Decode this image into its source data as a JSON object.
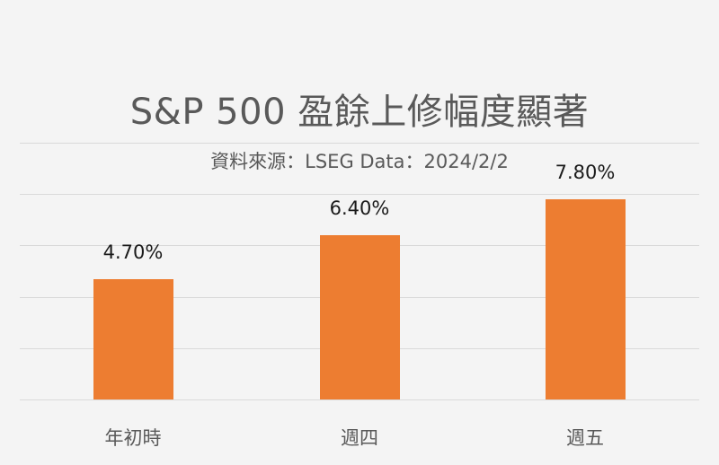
{
  "chart_data": {
    "type": "bar",
    "title": "S&P 500 盈餘上修幅度顯著",
    "subtitle": "資料來源：LSEG Data：2024/2/2",
    "categories": [
      "年初時",
      "週四",
      "週五"
    ],
    "values": [
      4.7,
      6.4,
      7.8
    ],
    "data_labels": [
      "4.70%",
      "6.40%",
      "7.80%"
    ],
    "xlabel": "",
    "ylabel": "",
    "ylim": [
      0,
      10
    ],
    "grid": true,
    "gridline_step": 2,
    "legend": "none",
    "bar_color": "#ed7d31"
  }
}
